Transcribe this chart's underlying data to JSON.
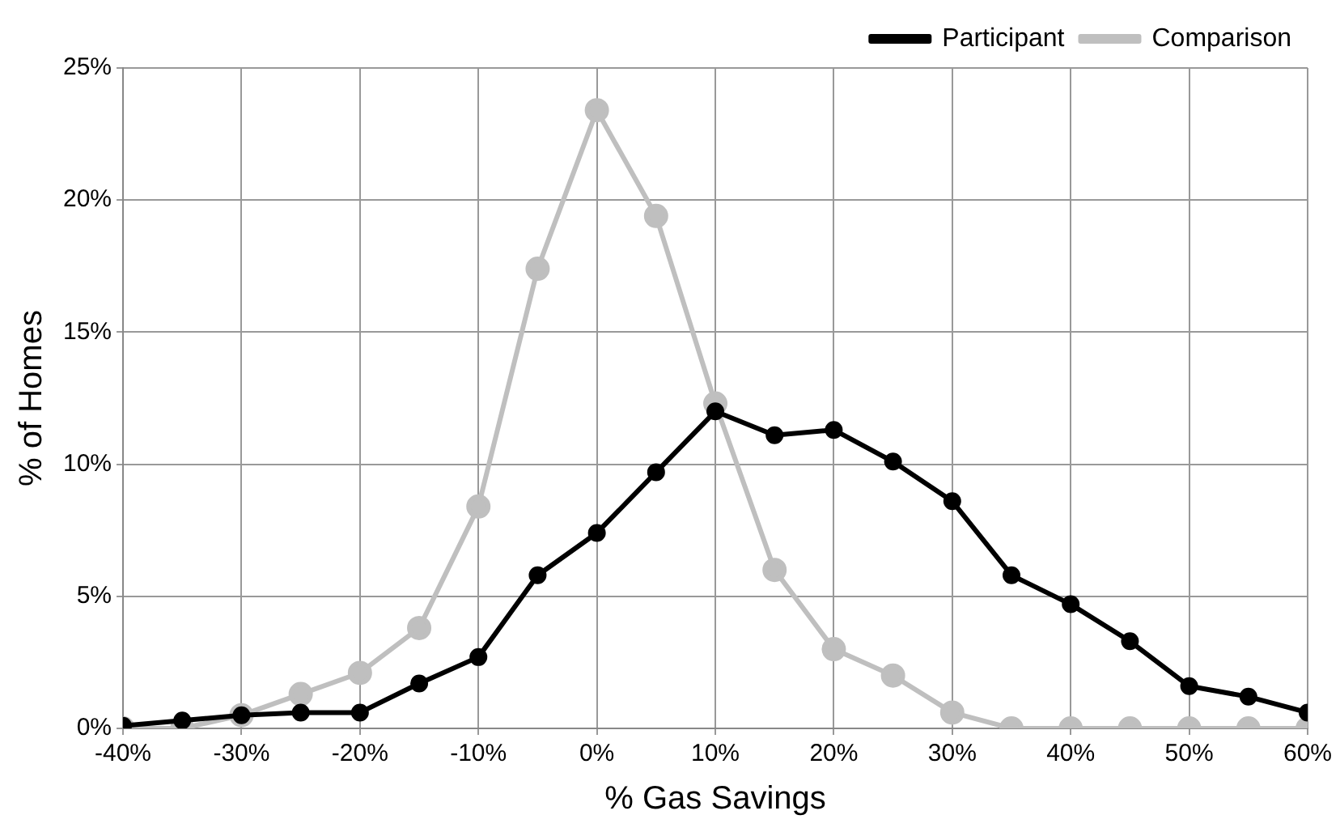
{
  "chart_data": {
    "type": "line",
    "xlabel": "% Gas Savings",
    "ylabel": "% of Homes",
    "x": [
      -40,
      -35,
      -30,
      -25,
      -20,
      -15,
      -10,
      -5,
      0,
      5,
      10,
      15,
      20,
      25,
      30,
      35,
      40,
      45,
      50,
      55,
      60
    ],
    "series": [
      {
        "name": "Participant",
        "color": "#000000",
        "values": [
          0.1,
          0.3,
          0.5,
          0.6,
          0.6,
          1.7,
          2.7,
          5.8,
          7.4,
          9.7,
          12.0,
          11.1,
          11.3,
          10.1,
          8.6,
          5.8,
          4.7,
          3.3,
          1.6,
          1.2,
          0.6
        ]
      },
      {
        "name": "Comparison",
        "color": "#bfbfbf",
        "values": [
          0,
          0,
          0.5,
          1.3,
          2.1,
          3.8,
          8.4,
          17.4,
          23.4,
          19.4,
          12.3,
          6.0,
          3.0,
          2.0,
          0.6,
          0,
          0,
          0,
          0,
          0,
          0
        ]
      }
    ],
    "xlim": [
      -40,
      60
    ],
    "xticks": [
      {
        "value": -40,
        "label": "-40%"
      },
      {
        "value": -30,
        "label": "-30%"
      },
      {
        "value": -20,
        "label": "-20%"
      },
      {
        "value": -10,
        "label": "-10%"
      },
      {
        "value": 0,
        "label": "0%"
      },
      {
        "value": 10,
        "label": "10%"
      },
      {
        "value": 20,
        "label": "20%"
      },
      {
        "value": 30,
        "label": "30%"
      },
      {
        "value": 40,
        "label": "40%"
      },
      {
        "value": 50,
        "label": "50%"
      },
      {
        "value": 60,
        "label": "60%"
      }
    ],
    "ylim": [
      0,
      25
    ],
    "yticks": [
      {
        "value": 0,
        "label": "0%"
      },
      {
        "value": 5,
        "label": "5%"
      },
      {
        "value": 10,
        "label": "10%"
      },
      {
        "value": 15,
        "label": "15%"
      },
      {
        "value": 20,
        "label": "20%"
      },
      {
        "value": 25,
        "label": "25%"
      }
    ],
    "grid": true,
    "legend": "top right",
    "marker": "circle",
    "line_style": "solid"
  }
}
